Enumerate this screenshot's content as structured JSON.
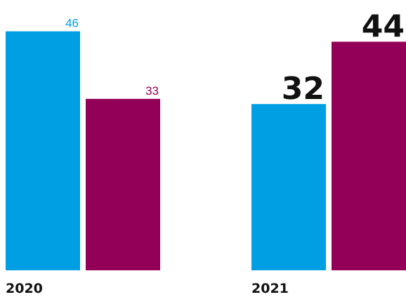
{
  "chart_data": {
    "type": "bar",
    "categories": [
      "2020",
      "2021"
    ],
    "series": [
      {
        "values": [
          46,
          32
        ]
      },
      {
        "values": [
          33,
          44
        ]
      }
    ],
    "data_labels": [
      [
        "46",
        "33"
      ],
      [
        "32",
        "44"
      ]
    ],
    "ylim": [
      0,
      50
    ],
    "grid": false,
    "legend": "none"
  },
  "colors": {
    "series_1": "#009fe3",
    "series_2": "#930057",
    "text_dark": "#111111"
  }
}
